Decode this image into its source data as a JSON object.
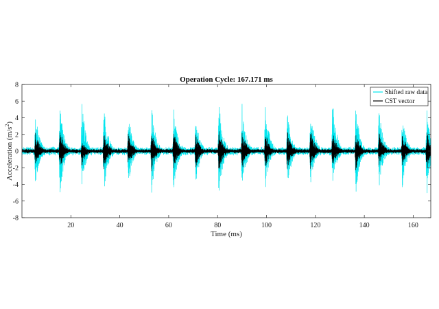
{
  "chart_data": {
    "type": "line",
    "title": "Operation Cycle: 167.171 ms",
    "xlabel": "Time (ms)",
    "ylabel_main": "Acceleration (m/s",
    "ylabel_sup": "2",
    "ylabel_end": ")",
    "xlim": [
      0,
      167.171
    ],
    "ylim": [
      -8,
      8
    ],
    "xticks": [
      20,
      40,
      60,
      80,
      100,
      120,
      140,
      160
    ],
    "xtick_labels": [
      "20",
      "40",
      "60",
      "80",
      "100",
      "120",
      "140",
      "160"
    ],
    "yticks": [
      -8,
      -6,
      -4,
      -2,
      0,
      2,
      4,
      6,
      8
    ],
    "ytick_labels": [
      "-8",
      "-6",
      "-4",
      "-2",
      "0",
      "2",
      "4",
      "6",
      "8"
    ],
    "grid": false,
    "legend_position": "top-right",
    "burst_times_ms": [
      5.5,
      15.5,
      24.5,
      33.5,
      43.5,
      53.0,
      62.0,
      71.0,
      80.5,
      90.0,
      99.5,
      108.5,
      118.0,
      127.0,
      136.5,
      146.0,
      155.5,
      165.5
    ],
    "series": [
      {
        "name": "Shifted raw data",
        "color": "#00e5ee",
        "burst_peaks_pos": [
          4.9,
          6.0,
          6.2,
          5.9,
          5.0,
          5.8,
          5.6,
          4.5,
          6.3,
          6.0,
          6.2,
          5.0,
          6.0,
          6.5,
          5.9,
          5.5,
          4.8,
          5.4
        ],
        "burst_peaks_neg": [
          -4.5,
          -5.6,
          -4.6,
          -5.7,
          -4.6,
          -5.4,
          -5.1,
          -4.6,
          -5.9,
          -5.2,
          -5.1,
          -5.0,
          -4.2,
          -4.6,
          -5.5,
          -4.6,
          -4.6,
          -5.8
        ],
        "background_amplitude": 0.55
      },
      {
        "name": "CST vector",
        "color": "#000000",
        "burst_peaks_pos": [
          2.4,
          2.9,
          1.4,
          2.7,
          2.5,
          2.8,
          2.6,
          2.3,
          2.7,
          2.8,
          2.6,
          2.5,
          2.8,
          2.7,
          2.5,
          2.6,
          2.4,
          2.5
        ],
        "burst_peaks_neg": [
          -2.0,
          -2.5,
          -1.9,
          -2.6,
          -2.1,
          -2.5,
          -2.3,
          -2.4,
          -2.7,
          -2.6,
          -2.2,
          -2.7,
          -2.3,
          -2.0,
          -2.4,
          -1.8,
          -2.0,
          -2.6
        ],
        "background_amplitude": 0.3
      }
    ]
  }
}
